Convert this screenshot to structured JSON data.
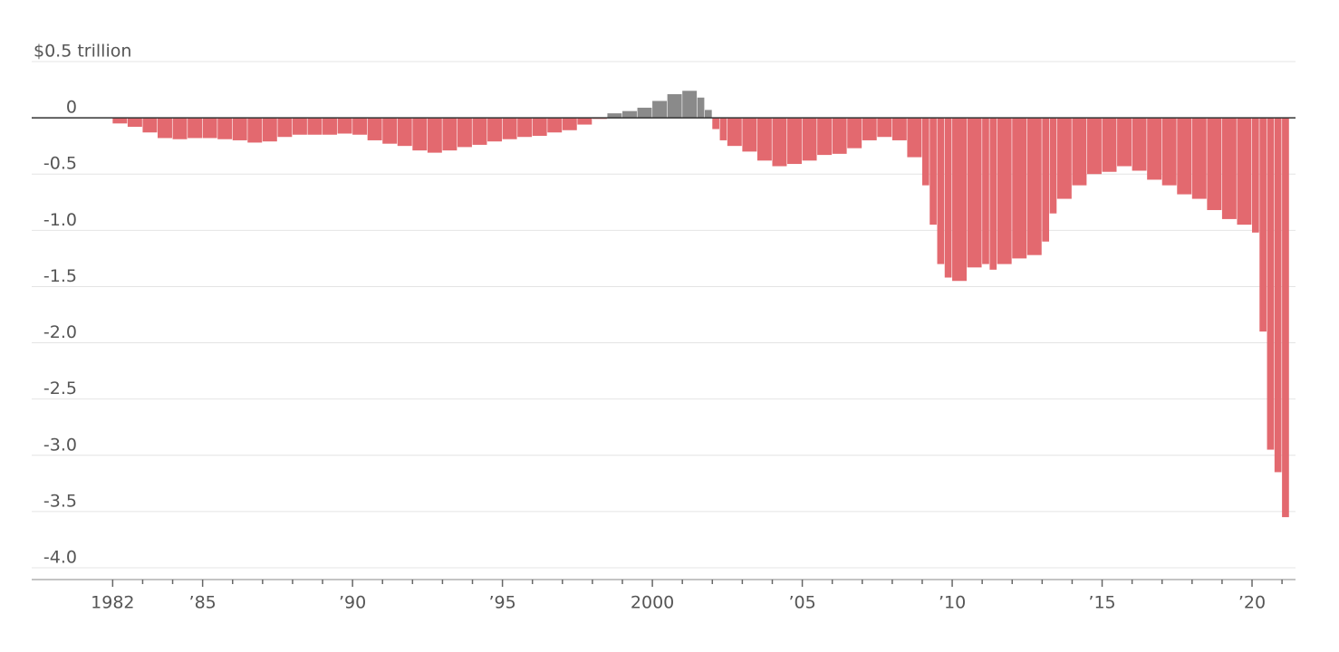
{
  "chart_data": {
    "type": "bar",
    "x": [
      1982,
      1982.5,
      1983,
      1983.5,
      1984,
      1984.5,
      1985,
      1985.5,
      1986,
      1986.5,
      1987,
      1987.5,
      1988,
      1988.5,
      1989,
      1989.5,
      1990,
      1990.5,
      1991,
      1991.5,
      1992,
      1992.5,
      1993,
      1993.5,
      1994,
      1994.5,
      1995,
      1995.5,
      1996,
      1996.5,
      1997,
      1997.5,
      1998,
      1998.5,
      1999,
      1999.5,
      2000,
      2000.5,
      2001,
      2001.5,
      2001.75,
      2002,
      2002.25,
      2002.5,
      2003,
      2003.5,
      2004,
      2004.5,
      2005,
      2005.5,
      2006,
      2006.5,
      2007,
      2007.5,
      2008,
      2008.5,
      2009,
      2009.25,
      2009.5,
      2009.75,
      2010,
      2010.5,
      2011,
      2011.25,
      2011.5,
      2012,
      2012.5,
      2013,
      2013.25,
      2013.5,
      2014,
      2014.5,
      2015,
      2015.5,
      2016,
      2016.5,
      2017,
      2017.5,
      2018,
      2018.5,
      2019,
      2019.5,
      2020,
      2020.25,
      2020.5,
      2020.75,
      2021
    ],
    "values": [
      -0.05,
      -0.08,
      -0.13,
      -0.18,
      -0.19,
      -0.18,
      -0.18,
      -0.19,
      -0.2,
      -0.22,
      -0.21,
      -0.17,
      -0.15,
      -0.15,
      -0.15,
      -0.14,
      -0.15,
      -0.2,
      -0.23,
      -0.25,
      -0.29,
      -0.31,
      -0.29,
      -0.26,
      -0.24,
      -0.21,
      -0.19,
      -0.17,
      -0.16,
      -0.13,
      -0.11,
      -0.06,
      -0.01,
      0.04,
      0.06,
      0.09,
      0.15,
      0.21,
      0.24,
      0.18,
      0.07,
      -0.1,
      -0.2,
      -0.25,
      -0.3,
      -0.38,
      -0.43,
      -0.41,
      -0.38,
      -0.33,
      -0.32,
      -0.27,
      -0.2,
      -0.17,
      -0.2,
      -0.35,
      -0.6,
      -0.95,
      -1.3,
      -1.42,
      -1.45,
      -1.33,
      -1.3,
      -1.35,
      -1.3,
      -1.25,
      -1.22,
      -1.1,
      -0.85,
      -0.72,
      -0.6,
      -0.5,
      -0.48,
      -0.43,
      -0.47,
      -0.55,
      -0.6,
      -0.68,
      -0.72,
      -0.82,
      -0.9,
      -0.95,
      -1.02,
      -1.9,
      -2.95,
      -3.15,
      -3.55
    ],
    "negative_color": "#e3696f",
    "positive_color": "#8a8a8a",
    "xlim": [
      1979.3,
      2021.45
    ],
    "xticks": [
      1982,
      {
        "value": 1985,
        "label": "’85"
      },
      {
        "value": 1990,
        "label": "’90"
      },
      {
        "value": 1995,
        "label": "’95"
      },
      2000,
      {
        "value": 2005,
        "label": "’05"
      },
      {
        "value": 2010,
        "label": "’10"
      },
      {
        "value": 2015,
        "label": "’15"
      },
      {
        "value": 2020,
        "label": "’20"
      }
    ],
    "minor_xticks": [
      1983,
      1984,
      1986,
      1987,
      1988,
      1989,
      1991,
      1992,
      1993,
      1994,
      1996,
      1997,
      1998,
      1999,
      2001,
      2002,
      2003,
      2004,
      2006,
      2007,
      2008,
      2009,
      2011,
      2012,
      2013,
      2014,
      2016,
      2017,
      2018,
      2019,
      2021
    ],
    "ylim": [
      -4,
      0.5
    ],
    "yticks": [
      {
        "value": 0.5,
        "label": "$0.5 trillion"
      },
      0,
      -0.5,
      {
        "value": -1,
        "label": "-1.0"
      },
      -1.5,
      {
        "value": -2,
        "label": "-2.0"
      },
      -2.5,
      {
        "value": -3,
        "label": "-3.0"
      },
      -3.5,
      {
        "value": -4,
        "label": "-4.0"
      }
    ],
    "grid": true
  }
}
